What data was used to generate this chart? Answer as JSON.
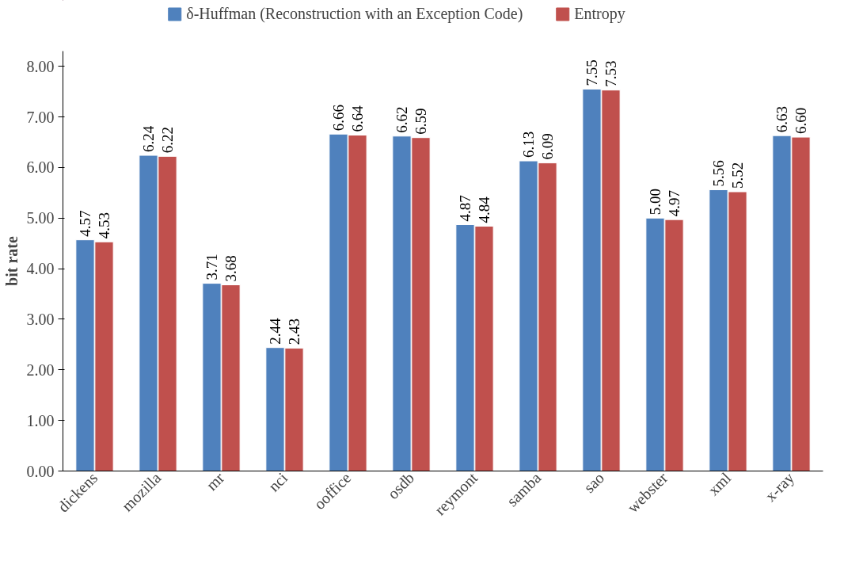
{
  "chart_data": {
    "type": "bar",
    "ylabel": "bit rate",
    "categories": [
      "dickens",
      "mozilla",
      "mr",
      "nci",
      "ooffice",
      "osdb",
      "reymont",
      "samba",
      "sao",
      "webster",
      "xml",
      "x-ray"
    ],
    "series": [
      {
        "name": "δ-Huffman (Reconstruction with an Exception Code)",
        "color": "#4f81bd",
        "values": [
          4.57,
          6.24,
          3.71,
          2.44,
          6.66,
          6.62,
          4.87,
          6.13,
          7.55,
          5.0,
          5.56,
          6.63
        ],
        "value_labels": [
          "4.57",
          "6.24",
          "3.71",
          "2.44",
          "6.66",
          "6.62",
          "4.87",
          "6.13",
          "7.55",
          "5.00",
          "5.56",
          "6.63"
        ]
      },
      {
        "name": "Entropy",
        "color": "#c0504d",
        "values": [
          4.53,
          6.22,
          3.68,
          2.43,
          6.64,
          6.59,
          4.84,
          6.09,
          7.53,
          4.97,
          5.52,
          6.6
        ],
        "value_labels": [
          "4.53",
          "6.22",
          "3.68",
          "2.43",
          "6.64",
          "6.59",
          "4.84",
          "6.09",
          "7.53",
          "4.97",
          "5.52",
          "6.60"
        ]
      }
    ],
    "ylim": [
      0,
      8.3
    ],
    "yticks": [
      {
        "value": 0,
        "label": "0.00"
      },
      {
        "value": 1,
        "label": "1.00"
      },
      {
        "value": 2,
        "label": "2.00"
      },
      {
        "value": 3,
        "label": "3.00"
      },
      {
        "value": 4,
        "label": "4.00"
      },
      {
        "value": 5,
        "label": "5.00"
      },
      {
        "value": 6,
        "label": "6.00"
      },
      {
        "value": 7,
        "label": "7.00"
      },
      {
        "value": 8,
        "label": "8.00"
      }
    ],
    "grid": false,
    "legend": "top"
  }
}
